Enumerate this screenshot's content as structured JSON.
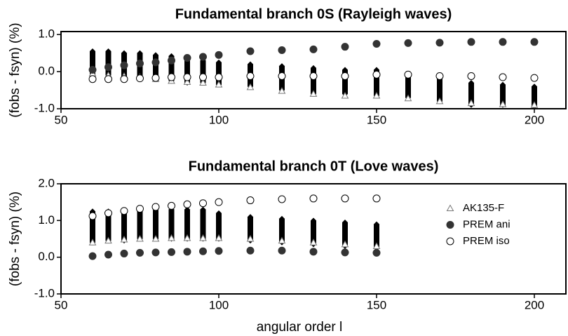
{
  "chart_data": [
    {
      "type": "scatter",
      "title": "Fundamental branch 0S (Rayleigh waves)",
      "ylabel": "(fobs - fsyn) (%)",
      "x": [
        60,
        65,
        70,
        75,
        80,
        85,
        90,
        95,
        100,
        110,
        120,
        130,
        140,
        150,
        160,
        170,
        180,
        190,
        200
      ],
      "ranges": {
        "low": [
          -0.15,
          -0.1,
          -0.15,
          -0.2,
          -0.2,
          -0.25,
          -0.3,
          -0.3,
          -0.35,
          -0.4,
          -0.5,
          -0.6,
          -0.6,
          -0.65,
          -0.7,
          -0.8,
          -0.9,
          -0.9,
          -0.95
        ],
        "high": [
          0.55,
          0.55,
          0.5,
          0.5,
          0.45,
          0.42,
          0.35,
          0.3,
          0.25,
          0.2,
          0.15,
          0.1,
          0.05,
          0.05,
          -0.05,
          -0.2,
          -0.3,
          -0.35,
          -0.4
        ],
        "color": "#000000"
      },
      "series": [
        {
          "marker": "triangle",
          "filled": false,
          "color": "#777777",
          "values": [
            -0.05,
            -0.1,
            -0.12,
            -0.15,
            -0.2,
            -0.25,
            -0.28,
            -0.3,
            -0.35,
            -0.42,
            -0.52,
            -0.6,
            -0.65,
            -0.65,
            -0.72,
            -0.8,
            -0.85,
            -0.88,
            -0.9
          ]
        },
        {
          "marker": "circle",
          "filled": true,
          "color": "#333333",
          "values": [
            0.05,
            0.12,
            0.17,
            0.22,
            0.25,
            0.3,
            0.37,
            0.4,
            0.45,
            0.55,
            0.58,
            0.6,
            0.67,
            0.75,
            0.77,
            0.78,
            0.8,
            0.8,
            0.8
          ]
        },
        {
          "marker": "circle",
          "filled": false,
          "color": "#000000",
          "values": [
            -0.2,
            -0.2,
            -0.2,
            -0.18,
            -0.17,
            -0.15,
            -0.15,
            -0.15,
            -0.15,
            -0.12,
            -0.12,
            -0.12,
            -0.12,
            -0.08,
            -0.08,
            -0.12,
            -0.12,
            -0.15,
            -0.17
          ]
        }
      ],
      "xlim": [
        50,
        210
      ],
      "xticks": [
        50,
        100,
        150,
        200
      ],
      "ylim": [
        -1,
        1.08
      ],
      "yticks": [
        {
          "value": -1,
          "label": "-1.0"
        },
        {
          "value": 0,
          "label": "0.0"
        },
        {
          "value": 1,
          "label": "1.0"
        }
      ],
      "legend": false
    },
    {
      "type": "scatter",
      "title": "Fundamental branch 0T (Love waves)",
      "ylabel": "(fobs - fsyn) (%)",
      "xlabel": "angular order l",
      "x": [
        60,
        65,
        70,
        75,
        80,
        85,
        90,
        95,
        100,
        110,
        120,
        130,
        140,
        150
      ],
      "ranges": {
        "low": [
          0.4,
          0.45,
          0.45,
          0.5,
          0.5,
          0.5,
          0.5,
          0.5,
          0.5,
          0.45,
          0.4,
          0.35,
          0.3,
          0.25
        ],
        "high": [
          1.25,
          1.25,
          1.22,
          1.25,
          1.28,
          1.3,
          1.3,
          1.3,
          1.2,
          1.1,
          1.05,
          1.0,
          0.95,
          0.9
        ],
        "color": "#000000"
      },
      "series": [
        {
          "name": "AK135-F",
          "marker": "triangle",
          "filled": false,
          "color": "#777777",
          "values": [
            0.4,
            0.45,
            0.48,
            0.5,
            0.5,
            0.52,
            0.52,
            0.52,
            0.52,
            0.5,
            0.45,
            0.4,
            0.35,
            0.3
          ]
        },
        {
          "name": "PREM ani",
          "marker": "circle",
          "filled": true,
          "color": "#333333",
          "values": [
            0.03,
            0.07,
            0.1,
            0.12,
            0.13,
            0.14,
            0.15,
            0.16,
            0.17,
            0.18,
            0.18,
            0.15,
            0.13,
            0.12
          ]
        },
        {
          "name": "PREM iso",
          "marker": "circle",
          "filled": false,
          "color": "#000000",
          "values": [
            1.12,
            1.2,
            1.26,
            1.32,
            1.37,
            1.4,
            1.44,
            1.47,
            1.5,
            1.55,
            1.58,
            1.6,
            1.6,
            1.6
          ]
        }
      ],
      "xlim": [
        50,
        210
      ],
      "xticks": [
        50,
        100,
        150,
        200
      ],
      "ylim": [
        -1,
        2
      ],
      "yticks": [
        {
          "value": -1,
          "label": "-1.0"
        },
        {
          "value": 0,
          "label": "0.0"
        },
        {
          "value": 1,
          "label": "1.0"
        },
        {
          "value": 2,
          "label": "2.0"
        }
      ],
      "legend": "upper right"
    }
  ]
}
